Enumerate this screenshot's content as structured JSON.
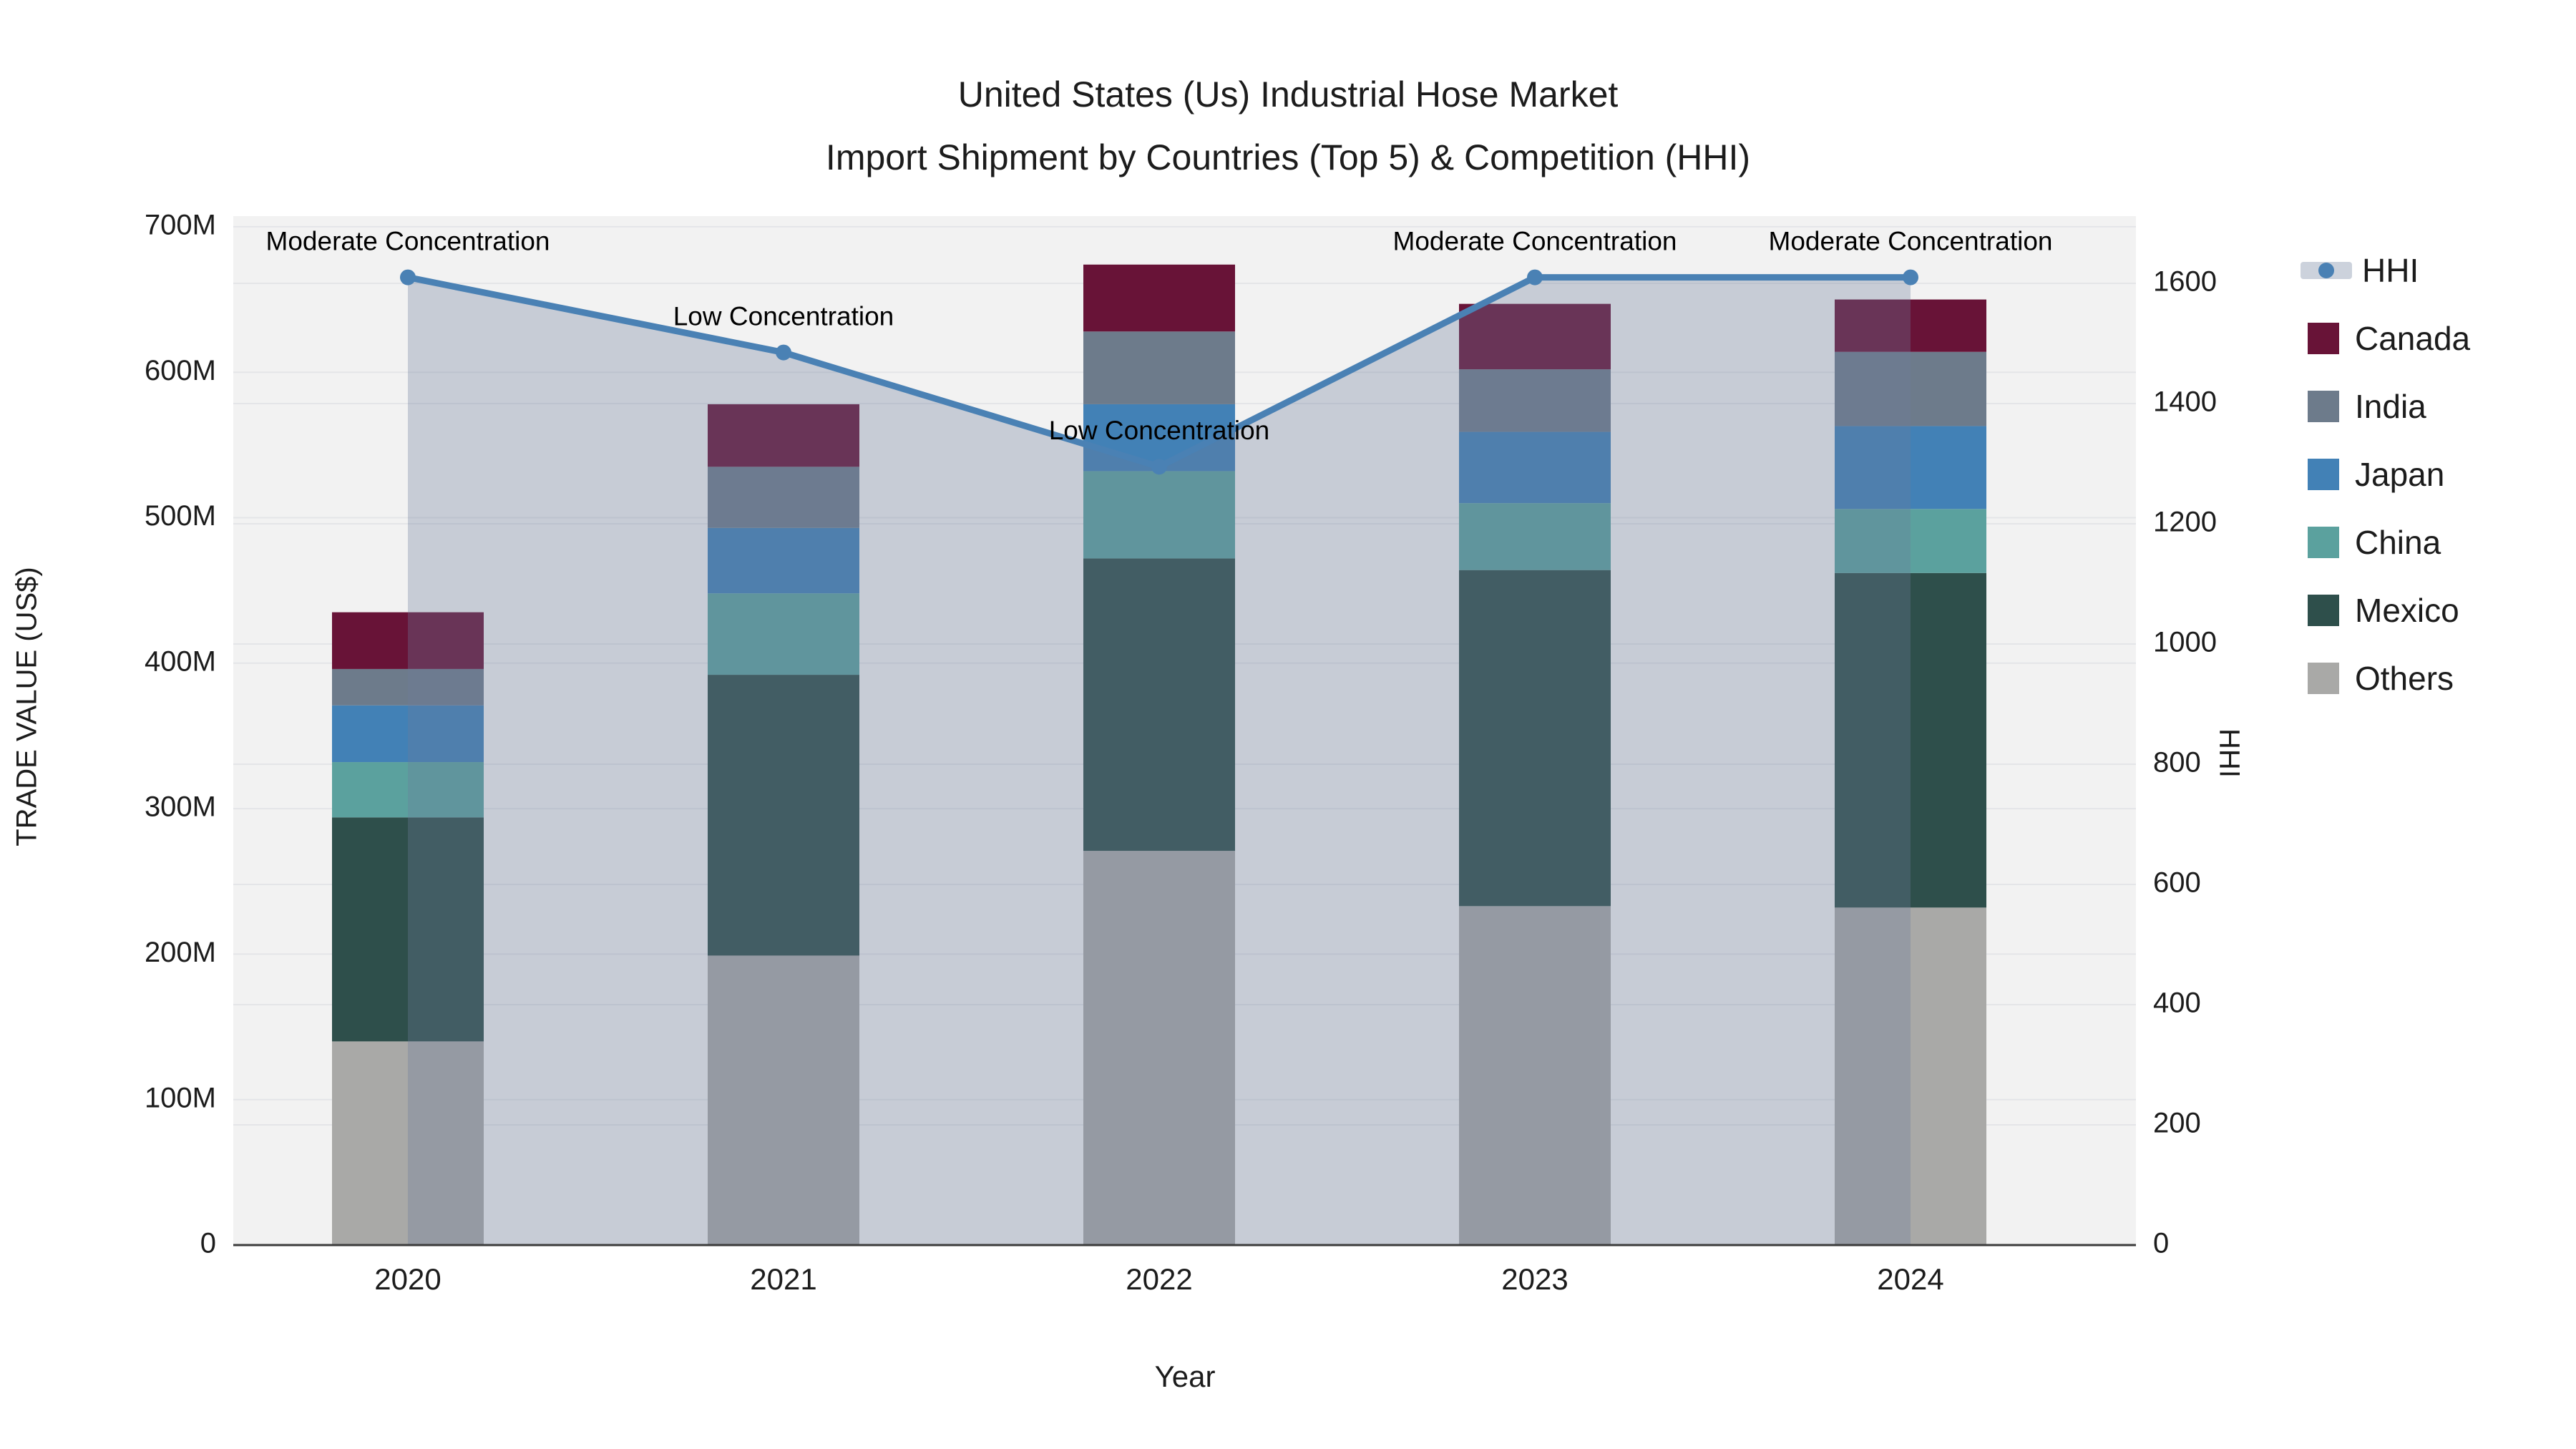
{
  "header": {
    "title_line1": "United States (Us) Industrial Hose Market",
    "title_line2": "Import Shipment by Countries (Top 5) & Competition (HHI)"
  },
  "chart_data": {
    "type": "bar+line",
    "title": "United States (Us) Industrial Hose Market Import Shipment by Countries (Top 5) & Competition (HHI)",
    "xlabel": "Year",
    "ylabel": "TRADE VALUE (US$)",
    "y2label": "HHI",
    "categories": [
      "2020",
      "2021",
      "2022",
      "2023",
      "2024"
    ],
    "stack_order_note": "series listed bottom-to-top of stack, values in millions US$",
    "series": [
      {
        "name": "Others",
        "color": "#a9a9a7",
        "values": [
          140,
          199,
          271,
          233,
          232
        ]
      },
      {
        "name": "Mexico",
        "color": "#2e4f4b",
        "values": [
          154,
          193,
          201,
          231,
          230
        ]
      },
      {
        "name": "China",
        "color": "#5ba19e",
        "values": [
          38,
          56,
          60,
          46,
          44
        ]
      },
      {
        "name": "Japan",
        "color": "#4281b6",
        "values": [
          39,
          45,
          46,
          49,
          57
        ]
      },
      {
        "name": "India",
        "color": "#6d7b8b",
        "values": [
          25,
          42,
          50,
          43,
          51
        ]
      },
      {
        "name": "Canada",
        "color": "#681337",
        "values": [
          39,
          43,
          46,
          45,
          36
        ]
      }
    ],
    "totals": [
      435,
      578,
      674,
      647,
      650
    ],
    "hhi": {
      "name": "HHI",
      "values": [
        1610,
        1485,
        1295,
        1610,
        1610
      ],
      "line_color": "#4a81b4",
      "area_fill": "rgba(108,125,155,0.32)"
    },
    "annotations": [
      {
        "category": "2020",
        "text": "Moderate Concentration"
      },
      {
        "category": "2021",
        "text": "Low Concentration"
      },
      {
        "category": "2022",
        "text": "Low Concentration"
      },
      {
        "category": "2023",
        "text": "Moderate Concentration"
      },
      {
        "category": "2024",
        "text": "Moderate Concentration"
      }
    ],
    "y_axis": {
      "ticks": [
        "0",
        "100M",
        "200M",
        "300M",
        "400M",
        "500M",
        "600M",
        "700M"
      ],
      "tick_values": [
        0,
        100,
        200,
        300,
        400,
        500,
        600,
        700
      ],
      "range": [
        0,
        707
      ]
    },
    "y2_axis": {
      "ticks": [
        "0",
        "200",
        "400",
        "600",
        "800",
        "1000",
        "1200",
        "1400",
        "1600"
      ],
      "tick_values": [
        0,
        200,
        400,
        600,
        800,
        1000,
        1200,
        1400,
        1600
      ],
      "range": [
        0,
        1712
      ]
    },
    "grid": true,
    "plot_bg": "#f2f2f2",
    "grid_color": "#e4e5e8",
    "axis_line_color": "#3b3b3b",
    "legend_position": "right"
  },
  "legend": {
    "items": [
      {
        "label": "HHI",
        "type": "line",
        "color": "#4a81b4"
      },
      {
        "label": "Canada",
        "type": "square",
        "color": "#681337"
      },
      {
        "label": "India",
        "type": "square",
        "color": "#6d7b8b"
      },
      {
        "label": "Japan",
        "type": "square",
        "color": "#4281b6"
      },
      {
        "label": "China",
        "type": "square",
        "color": "#5ba19e"
      },
      {
        "label": "Mexico",
        "type": "square",
        "color": "#2e4f4b"
      },
      {
        "label": "Others",
        "type": "square",
        "color": "#a9a9a7"
      }
    ]
  }
}
